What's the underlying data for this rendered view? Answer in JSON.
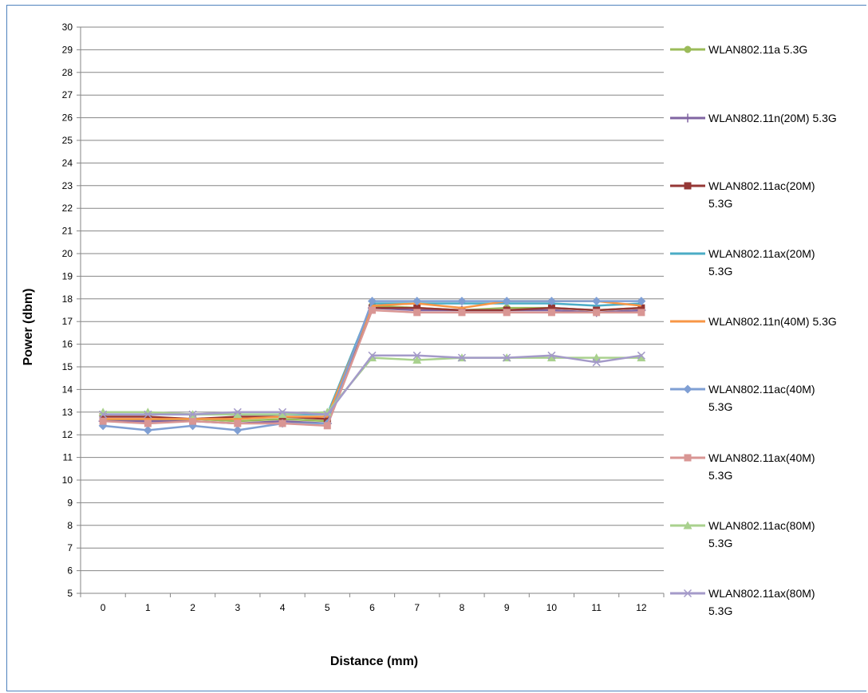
{
  "chart_data": {
    "type": "line",
    "title": "",
    "xlabel": "Distance (mm)",
    "ylabel": "Power (dbm)",
    "x": [
      0,
      1,
      2,
      3,
      4,
      5,
      6,
      7,
      8,
      9,
      10,
      11,
      12
    ],
    "ylim": [
      5,
      30
    ],
    "grid": "horizontal",
    "legend_position": "right",
    "series": [
      {
        "name": "WLAN802.11a 5.3G",
        "label_lines": [
          "WLAN802.11a 5.3G"
        ],
        "color": "#9bbb59",
        "marker": "circle",
        "values": [
          12.7,
          12.6,
          12.7,
          12.6,
          12.7,
          12.6,
          17.7,
          17.6,
          17.5,
          17.6,
          17.6,
          17.5,
          17.6
        ]
      },
      {
        "name": "WLAN802.11n(20M) 5.3G",
        "label_lines": [
          "WLAN802.11n(20M) 5.3G"
        ],
        "color": "#8064a2",
        "marker": "plus",
        "values": [
          12.6,
          12.6,
          12.6,
          12.5,
          12.6,
          12.5,
          17.6,
          17.5,
          17.5,
          17.5,
          17.5,
          17.4,
          17.5
        ]
      },
      {
        "name": "WLAN802.11ac(20M) 5.3G",
        "label_lines": [
          "WLAN802.11ac(20M)",
          "5.3G"
        ],
        "color": "#953735",
        "marker": "square",
        "values": [
          12.8,
          12.8,
          12.7,
          12.8,
          12.8,
          12.7,
          17.6,
          17.6,
          17.5,
          17.5,
          17.6,
          17.5,
          17.6
        ]
      },
      {
        "name": "WLAN802.11ax(20M) 5.3G",
        "label_lines": [
          "WLAN802.11ax(20M)",
          "5.3G"
        ],
        "color": "#4bacc6",
        "marker": "none",
        "values": [
          12.9,
          12.9,
          12.9,
          12.9,
          12.9,
          12.9,
          17.8,
          17.8,
          17.8,
          17.8,
          17.8,
          17.7,
          17.8
        ]
      },
      {
        "name": "WLAN802.11n(40M) 5.3G",
        "label_lines": [
          "WLAN802.11n(40M) 5.3G"
        ],
        "color": "#f79646",
        "marker": "none",
        "values": [
          12.7,
          12.7,
          12.7,
          12.7,
          12.8,
          12.8,
          17.7,
          17.8,
          17.6,
          17.9,
          17.9,
          17.9,
          17.7
        ]
      },
      {
        "name": "WLAN802.11ac(40M) 5.3G",
        "label_lines": [
          "WLAN802.11ac(40M)",
          "5.3G"
        ],
        "color": "#7f9fd4",
        "marker": "diamond",
        "values": [
          12.4,
          12.2,
          12.4,
          12.2,
          12.5,
          12.5,
          17.9,
          17.9,
          17.9,
          17.9,
          17.9,
          17.9,
          17.9
        ]
      },
      {
        "name": "WLAN802.11ax(40M) 5.3G",
        "label_lines": [
          "WLAN802.11ax(40M)",
          "5.3G"
        ],
        "color": "#d99694",
        "marker": "square",
        "values": [
          12.6,
          12.5,
          12.6,
          12.5,
          12.5,
          12.4,
          17.5,
          17.4,
          17.4,
          17.4,
          17.4,
          17.4,
          17.4
        ]
      },
      {
        "name": "WLAN802.11ac(80M) 5.3G",
        "label_lines": [
          "WLAN802.11ac(80M)",
          "5.3G"
        ],
        "color": "#a9d18e",
        "marker": "triangle",
        "values": [
          13.0,
          13.0,
          12.9,
          12.9,
          12.9,
          13.0,
          15.4,
          15.3,
          15.4,
          15.4,
          15.4,
          15.4,
          15.4
        ]
      },
      {
        "name": "WLAN802.11ax(80M) 5.3G",
        "label_lines": [
          "WLAN802.11ax(80M)",
          "5.3G"
        ],
        "color": "#a49ac9",
        "marker": "x",
        "values": [
          12.9,
          12.9,
          12.9,
          13.0,
          13.0,
          12.9,
          15.5,
          15.5,
          15.4,
          15.4,
          15.5,
          15.2,
          15.5
        ]
      }
    ]
  }
}
